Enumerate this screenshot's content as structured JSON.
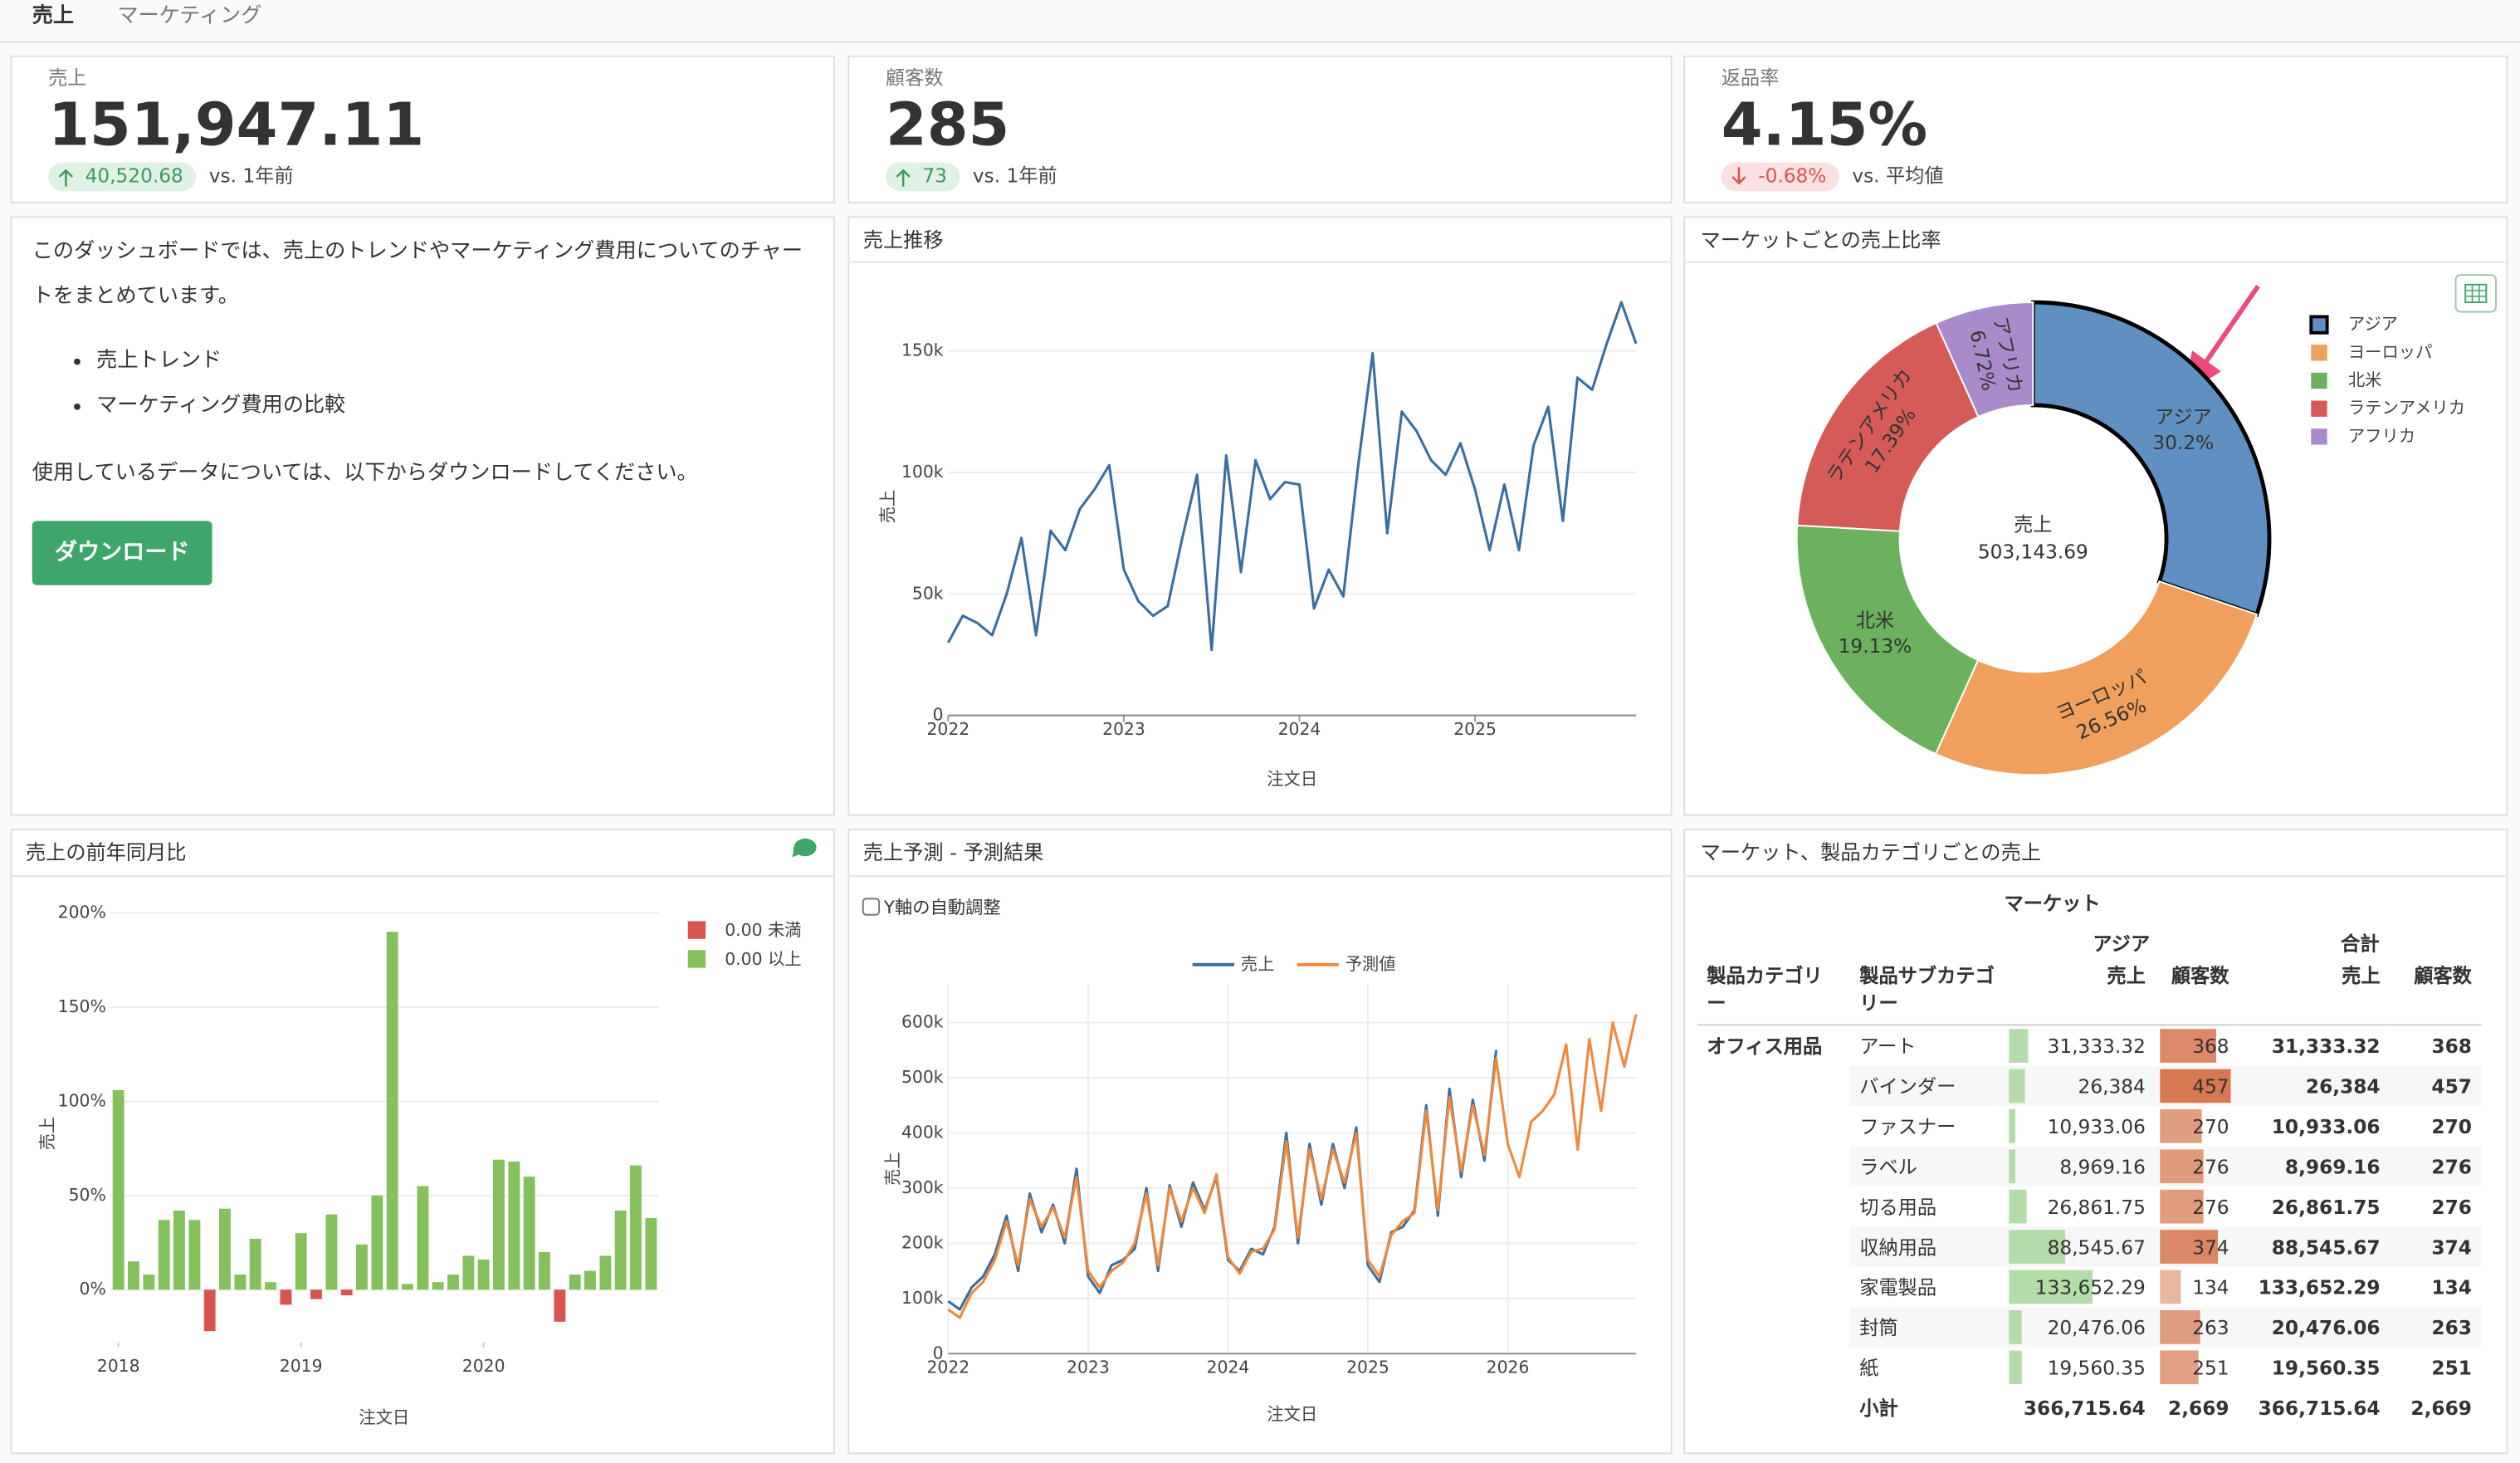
{
  "tabs": [
    "売上",
    "マーケティング"
  ],
  "kpis": [
    {
      "label": "売上",
      "value": "151,947.11",
      "delta": "40,520.68",
      "compare": "vs. 1年前"
    },
    {
      "label": "顧客数",
      "value": "285",
      "delta": "73",
      "compare": "vs. 1年前"
    },
    {
      "label": "返品率",
      "value": "4.15%",
      "delta": "-0.68%",
      "compare": "vs. 平均値"
    }
  ],
  "description": {
    "intro": "このダッシュボードでは、売上のトレンドやマーケティング費用についてのチャートをまとめています。",
    "bullets": [
      "売上トレンド",
      "マーケティング費用の比較"
    ],
    "note": "使用しているデータについては、以下からダウンロードしてください。",
    "button": "ダウンロード"
  },
  "sales_trend": {
    "type": "line",
    "title": "売上推移",
    "x_label": "注文日",
    "y_label": "売上",
    "color": "#3b6e9e",
    "x": [
      2022,
      2022.083,
      2022.167,
      2022.25,
      2022.333,
      2022.417,
      2022.5,
      2022.583,
      2022.667,
      2022.75,
      2022.833,
      2022.917,
      2023,
      2023.083,
      2023.167,
      2023.25,
      2023.333,
      2023.417,
      2023.5,
      2023.583,
      2023.667,
      2023.75,
      2023.833,
      2023.917,
      2024,
      2024.083,
      2024.167,
      2024.25,
      2024.333,
      2024.417,
      2024.5,
      2024.583,
      2024.667,
      2024.75,
      2024.833,
      2024.917,
      2025,
      2025.083,
      2025.167,
      2025.25,
      2025.333,
      2025.417,
      2025.5,
      2025.583,
      2025.667,
      2025.75,
      2025.833,
      2025.917
    ],
    "values": [
      30000,
      41000,
      38000,
      33000,
      50000,
      73000,
      33000,
      76000,
      68000,
      85000,
      93000,
      103000,
      60000,
      47000,
      41000,
      45000,
      73000,
      99000,
      27000,
      107000,
      59000,
      105000,
      89000,
      96000,
      95000,
      44000,
      60000,
      49000,
      102000,
      149000,
      75000,
      125000,
      117000,
      105000,
      99000,
      112000,
      93000,
      68000,
      95000,
      68000,
      111000,
      127000,
      80000,
      139000,
      134000,
      153000,
      170000,
      153000
    ],
    "xlim": [
      2022,
      2025.917
    ],
    "xticks": [
      2022,
      2023,
      2024,
      2025
    ],
    "ylim": [
      0,
      172000
    ],
    "yticks": [
      0,
      {
        "value": 50000,
        "label": "50k"
      },
      {
        "value": 100000,
        "label": "100k"
      },
      {
        "value": 150000,
        "label": "150k"
      }
    ],
    "grid": "y"
  },
  "market_share": {
    "type": "pie",
    "title": "マーケットごとの売上比率",
    "categories": [
      "アジア",
      "ヨーロッパ",
      "北米",
      "ラテンアメリカ",
      "アフリカ"
    ],
    "values": [
      30.2,
      26.56,
      19.13,
      17.39,
      6.72
    ],
    "value_labels": [
      "30.2%",
      "26.56%",
      "19.13%",
      "17.39%",
      "6.72%"
    ],
    "colors": [
      "#6090c2",
      "#f0a05c",
      "#6cb25e",
      "#d45b57",
      "#a98bcb"
    ],
    "center_label": "売上",
    "center_value": "503,143.69",
    "legend": "top-right",
    "selected": 0
  },
  "yoy": {
    "type": "bar",
    "title": "売上の前年同月比",
    "x_label": "注文日",
    "y_label": "売上",
    "x": [
      2018,
      2018.083,
      2018.167,
      2018.25,
      2018.333,
      2018.417,
      2018.5,
      2018.583,
      2018.667,
      2018.75,
      2018.833,
      2018.917,
      2019,
      2019.083,
      2019.167,
      2019.25,
      2019.333,
      2019.417,
      2019.5,
      2019.583,
      2019.667,
      2019.75,
      2019.833,
      2019.917,
      2020,
      2020.083,
      2020.167,
      2020.25,
      2020.333,
      2020.417,
      2020.5,
      2020.583,
      2020.667,
      2020.75,
      2020.833,
      2020.917
    ],
    "values": [
      106,
      15,
      8,
      37,
      42,
      37,
      -22,
      43,
      8,
      27,
      4,
      -8,
      30,
      -5,
      40,
      -3,
      24,
      50,
      190,
      3,
      55,
      4,
      8,
      18,
      16,
      69,
      68,
      60,
      20,
      -17,
      8,
      10,
      18,
      42,
      66,
      38
    ],
    "xlim": [
      2017.95,
      2020.96
    ],
    "xticks": [
      2018,
      2019,
      2020
    ],
    "ylim": [
      -28,
      211
    ],
    "yticks": [
      {
        "value": 0,
        "label": "0%"
      },
      {
        "value": 50,
        "label": "50%"
      },
      {
        "value": 100,
        "label": "100%"
      },
      {
        "value": 150,
        "label": "150%"
      },
      {
        "value": 200,
        "label": "200%"
      }
    ],
    "grid": "y",
    "threshold": 0,
    "legend": [
      {
        "name": "0.00 未満",
        "color": "#d9534f"
      },
      {
        "name": "0.00 以上",
        "color": "#84c05c"
      }
    ]
  },
  "forecast": {
    "type": "line",
    "title": "売上予測 - 予測結果",
    "checkbox": "Y軸の自動調整",
    "x_label": "注文日",
    "y_label": "売上",
    "x": [
      2022,
      2022.083,
      2022.167,
      2022.25,
      2022.333,
      2022.417,
      2022.5,
      2022.583,
      2022.667,
      2022.75,
      2022.833,
      2022.917,
      2023,
      2023.083,
      2023.167,
      2023.25,
      2023.333,
      2023.417,
      2023.5,
      2023.583,
      2023.667,
      2023.75,
      2023.833,
      2023.917,
      2024,
      2024.083,
      2024.167,
      2024.25,
      2024.333,
      2024.417,
      2024.5,
      2024.583,
      2024.667,
      2024.75,
      2024.833,
      2024.917,
      2025,
      2025.083,
      2025.167,
      2025.25,
      2025.333,
      2025.417,
      2025.5,
      2025.583,
      2025.667,
      2025.75,
      2025.833,
      2025.917,
      2026,
      2026.083,
      2026.167,
      2026.25,
      2026.333,
      2026.417,
      2026.5,
      2026.583,
      2026.667,
      2026.75,
      2026.833,
      2026.917
    ],
    "series": [
      {
        "name": "売上",
        "color": "#3b6e9e",
        "values": [
          95000,
          80000,
          120000,
          140000,
          180000,
          250000,
          150000,
          290000,
          220000,
          270000,
          200000,
          335000,
          140000,
          110000,
          160000,
          170000,
          190000,
          300000,
          150000,
          305000,
          230000,
          310000,
          260000,
          320000,
          170000,
          150000,
          190000,
          180000,
          230000,
          400000,
          200000,
          380000,
          270000,
          380000,
          300000,
          410000,
          160000,
          130000,
          220000,
          230000,
          260000,
          450000,
          250000,
          480000,
          320000,
          460000,
          350000,
          550000,
          null,
          null,
          null,
          null,
          null,
          null,
          null,
          null,
          null,
          null,
          null,
          null
        ]
      },
      {
        "name": "予測値",
        "color": "#f0883a",
        "values": [
          80000,
          65000,
          110000,
          130000,
          170000,
          240000,
          160000,
          280000,
          230000,
          265000,
          210000,
          320000,
          150000,
          120000,
          150000,
          165000,
          200000,
          290000,
          160000,
          300000,
          240000,
          300000,
          255000,
          325000,
          175000,
          145000,
          185000,
          190000,
          225000,
          385000,
          210000,
          370000,
          280000,
          370000,
          310000,
          400000,
          170000,
          140000,
          215000,
          240000,
          255000,
          440000,
          260000,
          465000,
          330000,
          450000,
          360000,
          535000,
          380000,
          320000,
          420000,
          440000,
          470000,
          560000,
          370000,
          570000,
          440000,
          600000,
          520000,
          615000
        ]
      }
    ],
    "xlim": [
      2022,
      2026.917
    ],
    "xticks": [
      2022,
      2023,
      2024,
      2025,
      2026
    ],
    "ylim": [
      0,
      670000
    ],
    "yticks": [
      0,
      {
        "value": 100000,
        "label": "100k"
      },
      {
        "value": 200000,
        "label": "200k"
      },
      {
        "value": 300000,
        "label": "300k"
      },
      {
        "value": 400000,
        "label": "400k"
      },
      {
        "value": 500000,
        "label": "500k"
      },
      {
        "value": 600000,
        "label": "600k"
      }
    ],
    "grid": "both",
    "legend": "top"
  },
  "table": {
    "title": "マーケット、製品カテゴリごとの売上",
    "market_header": "マーケット",
    "market": "アジア",
    "total_header": "合計",
    "columns": [
      "製品カテゴリー",
      "製品サブカテゴリー",
      "売上",
      "顧客数",
      "売上",
      "顧客数"
    ],
    "category": "オフィス用品",
    "rows": [
      {
        "subcategory": "アート",
        "sales": 31333.32,
        "sales_label": "31,333.32",
        "customers": 368
      },
      {
        "subcategory": "バインダー",
        "sales": 26384,
        "sales_label": "26,384",
        "customers": 457
      },
      {
        "subcategory": "ファスナー",
        "sales": 10933.06,
        "sales_label": "10,933.06",
        "customers": 270
      },
      {
        "subcategory": "ラベル",
        "sales": 8969.16,
        "sales_label": "8,969.16",
        "customers": 276
      },
      {
        "subcategory": "切る用品",
        "sales": 26861.75,
        "sales_label": "26,861.75",
        "customers": 276
      },
      {
        "subcategory": "収納用品",
        "sales": 88545.67,
        "sales_label": "88,545.67",
        "customers": 374
      },
      {
        "subcategory": "家電製品",
        "sales": 133652.29,
        "sales_label": "133,652.29",
        "customers": 134
      },
      {
        "subcategory": "封筒",
        "sales": 20476.06,
        "sales_label": "20,476.06",
        "customers": 263
      },
      {
        "subcategory": "紙",
        "sales": 19560.35,
        "sales_label": "19,560.35",
        "customers": 251
      }
    ],
    "subtotal": {
      "label": "小計",
      "sales": "366,715.64",
      "customers": "2,669"
    }
  }
}
